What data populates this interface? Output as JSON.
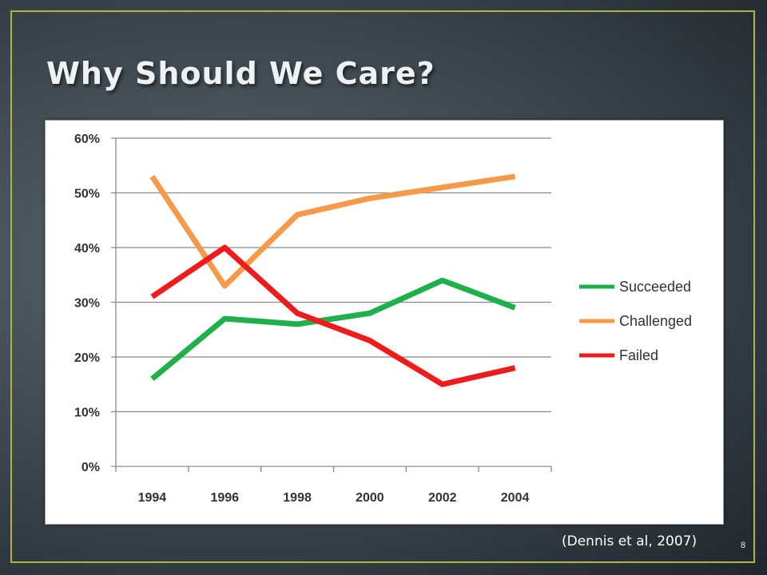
{
  "slide": {
    "title": "Why Should We Care?",
    "citation": "(Dennis et al, 2007)",
    "slide_number": "8"
  },
  "chart_data": {
    "type": "line",
    "x": [
      1994,
      1996,
      1998,
      2000,
      2002,
      2004
    ],
    "categories": [
      "1994",
      "1996",
      "1998",
      "2000",
      "2002",
      "2004"
    ],
    "series": [
      {
        "name": "Succeeded",
        "color": "#1fb04c",
        "values": [
          16,
          27,
          26,
          28,
          34,
          29
        ]
      },
      {
        "name": "Challenged",
        "color": "#f59a4a",
        "values": [
          53,
          33,
          46,
          49,
          51,
          53
        ]
      },
      {
        "name": "Failed",
        "color": "#ee1c1c",
        "values": [
          31,
          40,
          28,
          23,
          15,
          18
        ]
      }
    ],
    "ylim": [
      0,
      60
    ],
    "yticks": [
      "0%",
      "10%",
      "20%",
      "30%",
      "40%",
      "50%",
      "60%"
    ],
    "grid": true,
    "legend_position": "right",
    "title": "",
    "xlabel": "",
    "ylabel": ""
  }
}
